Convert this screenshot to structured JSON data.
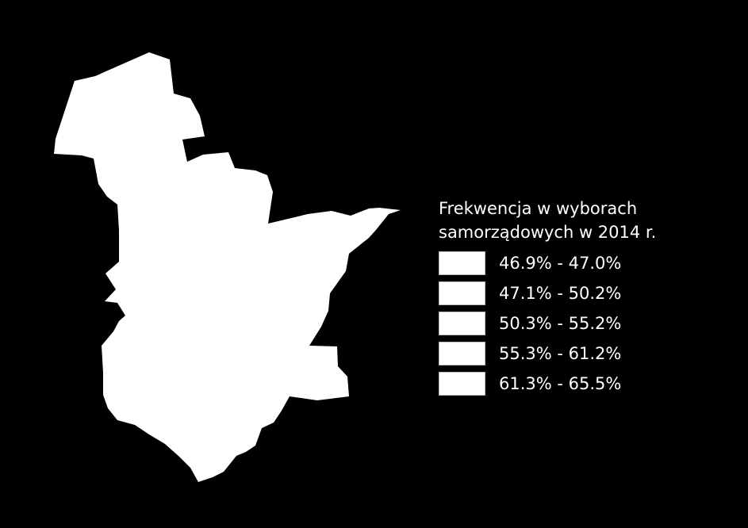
{
  "map": {
    "background_color": "#000000",
    "region_fill": "#ffffff",
    "legend": {
      "title_line1": "Frekwencja w wyborach",
      "title_line2": "samorządowych w 2014 r.",
      "items": [
        {
          "label": "46.9% - 47.0%",
          "color": "#ffffff"
        },
        {
          "label": "47.1% - 50.2%",
          "color": "#ffffff"
        },
        {
          "label": "50.3% - 55.2%",
          "color": "#ffffff"
        },
        {
          "label": "55.3% - 61.2%",
          "color": "#ffffff"
        },
        {
          "label": "61.3% - 65.5%",
          "color": "#ffffff"
        }
      ]
    }
  }
}
